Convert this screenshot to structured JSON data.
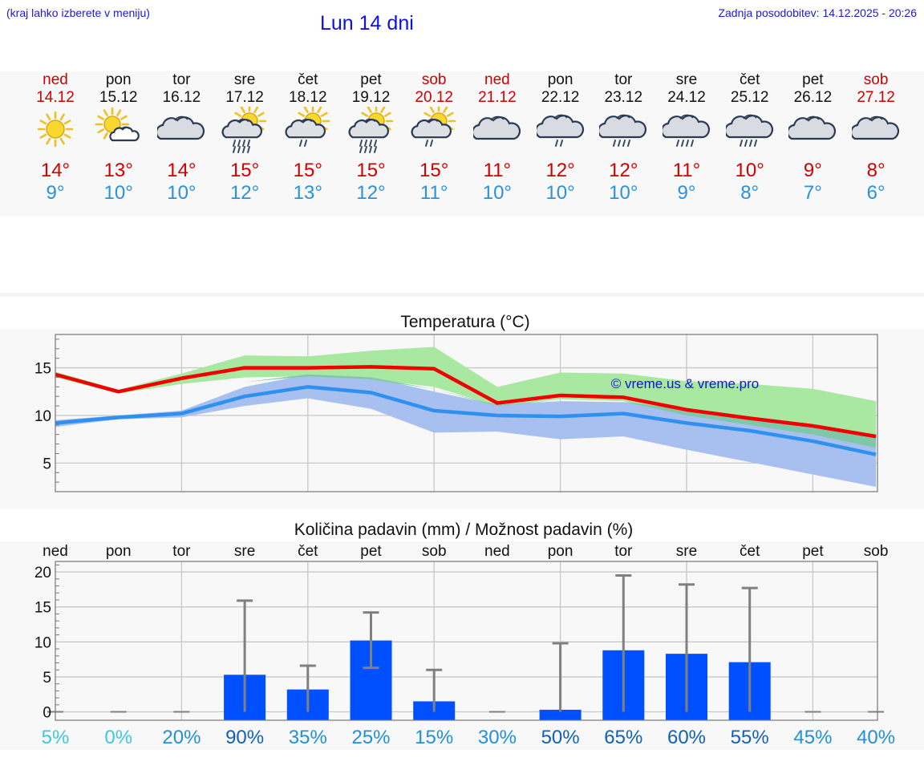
{
  "header": {
    "left_note": "(kraj lahko izberete v meniju)",
    "title": "Lun 14 dni",
    "updated": "Zadnja posodobitev: 14.12.2025 - 20:26"
  },
  "forecast": [
    {
      "day": "ned",
      "date": "14.12",
      "icon": "sun-icon",
      "hi": "14°",
      "lo": "9°",
      "weekend": true
    },
    {
      "day": "pon",
      "date": "15.12",
      "icon": "sun-cloud-icon",
      "hi": "13°",
      "lo": "10°",
      "weekend": false
    },
    {
      "day": "tor",
      "date": "16.12",
      "icon": "cloud-icon",
      "hi": "14°",
      "lo": "10°",
      "weekend": false
    },
    {
      "day": "sre",
      "date": "17.12",
      "icon": "sun-cloud-rain-icon",
      "hi": "15°",
      "lo": "12°",
      "weekend": false
    },
    {
      "day": "čet",
      "date": "18.12",
      "icon": "sun-cloud-light-rain-icon",
      "hi": "15°",
      "lo": "13°",
      "weekend": false
    },
    {
      "day": "pet",
      "date": "19.12",
      "icon": "sun-cloud-rain-icon",
      "hi": "15°",
      "lo": "12°",
      "weekend": false
    },
    {
      "day": "sob",
      "date": "20.12",
      "icon": "sun-cloud-light-rain-icon",
      "hi": "15°",
      "lo": "11°",
      "weekend": true
    },
    {
      "day": "ned",
      "date": "21.12",
      "icon": "cloud-icon",
      "hi": "11°",
      "lo": "10°",
      "weekend": true
    },
    {
      "day": "pon",
      "date": "22.12",
      "icon": "cloud-light-rain-icon",
      "hi": "12°",
      "lo": "10°",
      "weekend": false
    },
    {
      "day": "tor",
      "date": "23.12",
      "icon": "cloud-rain-icon",
      "hi": "12°",
      "lo": "10°",
      "weekend": false
    },
    {
      "day": "sre",
      "date": "24.12",
      "icon": "cloud-rain-icon",
      "hi": "11°",
      "lo": "9°",
      "weekend": false
    },
    {
      "day": "čet",
      "date": "25.12",
      "icon": "cloud-rain-icon",
      "hi": "10°",
      "lo": "8°",
      "weekend": false
    },
    {
      "day": "pet",
      "date": "26.12",
      "icon": "cloud-icon",
      "hi": "9°",
      "lo": "7°",
      "weekend": false
    },
    {
      "day": "sob",
      "date": "27.12",
      "icon": "cloud-icon",
      "hi": "8°",
      "lo": "6°",
      "weekend": true
    }
  ],
  "colors": {
    "max_line": "#f00000",
    "min_line": "#3090f0",
    "max_band": "#a8e8a0",
    "min_band": "#a8c0f0",
    "overlap_band": "#7ec8a8",
    "bar": "#0050ff",
    "error": "#808080",
    "grid": "#c8c8c8"
  },
  "chart_data": [
    {
      "type": "line",
      "title": "Temperatura (°C)",
      "watermark": "© vreme.us & vreme.pro",
      "ylim": [
        2,
        18.5
      ],
      "yticks": [
        "15",
        "10",
        "5"
      ],
      "ytick_values": [
        15,
        10,
        5
      ],
      "series": [
        {
          "name": "max",
          "values": [
            14.3,
            12.5,
            13.9,
            15.0,
            15.0,
            15.1,
            14.9,
            11.3,
            12.1,
            11.9,
            10.6,
            9.7,
            8.9,
            7.8
          ]
        },
        {
          "name": "min",
          "values": [
            9.2,
            9.8,
            10.2,
            12.0,
            13.0,
            12.4,
            10.5,
            10.0,
            9.9,
            10.2,
            9.2,
            8.4,
            7.3,
            5.9
          ]
        }
      ],
      "bands": [
        {
          "name": "max_range",
          "lower": [
            14.0,
            12.3,
            13.3,
            14.0,
            14.1,
            13.8,
            13.0,
            11.0,
            11.7,
            11.5,
            10.0,
            9.0,
            8.0,
            6.6
          ],
          "upper": [
            14.6,
            12.7,
            14.4,
            16.3,
            16.2,
            16.8,
            17.2,
            13.0,
            14.5,
            14.4,
            13.6,
            13.3,
            12.8,
            11.5
          ]
        },
        {
          "name": "min_range",
          "lower": [
            8.8,
            9.6,
            9.8,
            11.0,
            11.8,
            10.7,
            8.2,
            8.3,
            7.5,
            7.8,
            6.4,
            5.1,
            3.8,
            2.5
          ],
          "upper": [
            9.5,
            10.0,
            10.5,
            13.0,
            14.3,
            14.0,
            12.5,
            11.1,
            11.5,
            11.4,
            10.6,
            9.6,
            9.0,
            7.8
          ]
        }
      ]
    },
    {
      "type": "bar",
      "title": "Količina padavin (mm) / Možnost padavin (%)",
      "categories": [
        "ned",
        "pon",
        "tor",
        "sre",
        "čet",
        "pet",
        "sob",
        "ned",
        "pon",
        "tor",
        "sre",
        "čet",
        "pet",
        "sob"
      ],
      "values": [
        0,
        0,
        0,
        5.3,
        3.2,
        10.2,
        1.5,
        0,
        0.3,
        8.8,
        8.3,
        7.1,
        0,
        0
      ],
      "err_low": [
        0,
        0,
        0,
        0,
        0,
        6.3,
        0,
        0,
        0,
        0,
        0,
        0,
        0,
        0
      ],
      "err_high": [
        0,
        0,
        0,
        15.9,
        6.6,
        14.2,
        6.0,
        0,
        9.8,
        19.5,
        18.2,
        17.7,
        0,
        0
      ],
      "ylim": [
        -1.2,
        21.5
      ],
      "yticks": [
        "20",
        "15",
        "10",
        "5",
        "0"
      ],
      "ytick_values": [
        20,
        15,
        10,
        5,
        0
      ],
      "probability": [
        "5%",
        "0%",
        "20%",
        "90%",
        "35%",
        "25%",
        "15%",
        "30%",
        "50%",
        "65%",
        "60%",
        "55%",
        "45%",
        "40%"
      ]
    }
  ]
}
